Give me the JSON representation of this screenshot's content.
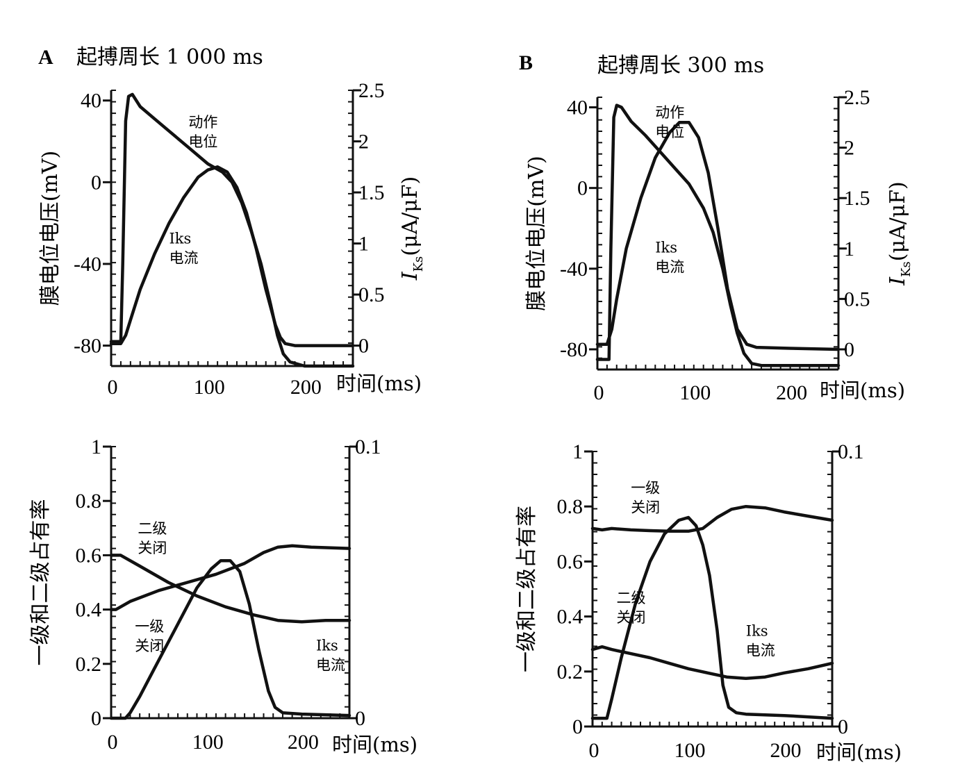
{
  "panels": [
    {
      "letter": "A",
      "title": "起搏周长 1 000 ms"
    },
    {
      "letter": "B",
      "title": "起搏周长 300 ms"
    }
  ],
  "chart_data": [
    {
      "panel": "A",
      "position": "top",
      "type": "line",
      "title": "起搏周长 1 000 ms",
      "xlabel": "时间(ms)",
      "ylabel": "膜电位电压(mV)",
      "y2label_main": "I",
      "y2label_sub": "Ks",
      "y2label_unit": "(μA/μF)",
      "xlim": [
        0,
        250
      ],
      "ylim": [
        -90,
        45
      ],
      "y2lim": [
        -0.2,
        2.5
      ],
      "xticks": [
        0,
        100,
        200
      ],
      "yticks": [
        40,
        0,
        -40,
        -80
      ],
      "y2ticks": [
        0,
        0.5,
        1,
        1.5,
        2,
        2.5
      ],
      "xtick_labels": [
        "0",
        "100",
        "200"
      ],
      "ytick_labels": [
        "40",
        "0",
        "-40",
        "-80"
      ],
      "y2tick_labels": [
        "0",
        "0.5",
        "1",
        "1.5",
        "2",
        "2.5"
      ],
      "series": [
        {
          "name": "动作电位",
          "axis": "left",
          "x": [
            0,
            10,
            12,
            15,
            18,
            22,
            30,
            45,
            60,
            80,
            100,
            115,
            125,
            135,
            145,
            155,
            165,
            172,
            178,
            185,
            200,
            250
          ],
          "y": [
            -78,
            -78,
            -40,
            30,
            42,
            43,
            37,
            31,
            25,
            17,
            9,
            5,
            0,
            -10,
            -24,
            -40,
            -60,
            -75,
            -84,
            -88,
            -90,
            -90
          ]
        },
        {
          "name": "Iks电流",
          "axis": "right",
          "x": [
            0,
            10,
            15,
            20,
            30,
            45,
            60,
            75,
            90,
            100,
            110,
            120,
            130,
            140,
            150,
            160,
            170,
            175,
            180,
            190,
            250
          ],
          "y": [
            0.02,
            0.02,
            0.1,
            0.25,
            0.55,
            0.9,
            1.2,
            1.45,
            1.65,
            1.72,
            1.75,
            1.7,
            1.55,
            1.3,
            0.95,
            0.55,
            0.2,
            0.08,
            0.02,
            0.0,
            0.0
          ]
        }
      ],
      "annotations": [
        {
          "lines": [
            "动作",
            "电位"
          ],
          "x": 80,
          "y": 27
        },
        {
          "lines": [
            "Iks",
            "电流"
          ],
          "x": 60,
          "y": -30
        }
      ]
    },
    {
      "panel": "A",
      "position": "bottom",
      "type": "line",
      "xlabel": "时间(ms)",
      "ylabel": "一级和二级占有率",
      "xlim": [
        0,
        250
      ],
      "ylim": [
        0,
        1
      ],
      "y2lim": [
        0,
        0.1
      ],
      "xticks": [
        0,
        100,
        200
      ],
      "yticks": [
        0,
        0.2,
        0.4,
        0.6,
        0.8,
        1
      ],
      "y2ticks": [
        0,
        0.1
      ],
      "xtick_labels": [
        "0",
        "100",
        "200"
      ],
      "ytick_labels": [
        "0",
        "0.2",
        "0.4",
        "0.6",
        "0.8",
        "1"
      ],
      "y2tick_labels": [
        "0",
        "0.1"
      ],
      "series": [
        {
          "name": "二级关闭",
          "axis": "left",
          "x": [
            0,
            10,
            30,
            60,
            90,
            120,
            150,
            175,
            200,
            225,
            250
          ],
          "y": [
            0.6,
            0.6,
            0.56,
            0.5,
            0.45,
            0.41,
            0.38,
            0.36,
            0.355,
            0.36,
            0.36
          ]
        },
        {
          "name": "一级关闭",
          "axis": "left",
          "x": [
            0,
            5,
            20,
            50,
            80,
            110,
            140,
            160,
            175,
            190,
            210,
            250
          ],
          "y": [
            0.4,
            0.4,
            0.43,
            0.47,
            0.5,
            0.53,
            0.57,
            0.61,
            0.63,
            0.635,
            0.63,
            0.625
          ]
        },
        {
          "name": "Iks电流",
          "axis": "right",
          "x": [
            0,
            15,
            20,
            30,
            45,
            60,
            75,
            90,
            105,
            115,
            125,
            135,
            145,
            155,
            165,
            172,
            180,
            200,
            250
          ],
          "y": [
            0,
            0,
            0.002,
            0.008,
            0.018,
            0.028,
            0.038,
            0.048,
            0.055,
            0.058,
            0.058,
            0.054,
            0.042,
            0.025,
            0.01,
            0.004,
            0.002,
            0.0015,
            0.001
          ]
        }
      ],
      "annotations": [
        {
          "lines": [
            "二级",
            "关闭"
          ],
          "x": 28,
          "y": 0.68
        },
        {
          "lines": [
            "一级",
            "关闭"
          ],
          "x": 25,
          "y": 0.32
        },
        {
          "lines": [
            "Iks",
            "电流"
          ],
          "x": 215,
          "y": 0.25
        }
      ]
    },
    {
      "panel": "B",
      "position": "top",
      "type": "line",
      "title": "起搏周长 300 ms",
      "xlabel": "时间(ms)",
      "ylabel": "膜电位电压(mV)",
      "y2label_main": "I",
      "y2label_sub": "Ks",
      "y2label_unit": "(μA/μF)",
      "xlim": [
        0,
        250
      ],
      "ylim": [
        -90,
        45
      ],
      "y2lim": [
        -0.2,
        2.5
      ],
      "xticks": [
        0,
        100,
        200
      ],
      "yticks": [
        40,
        0,
        -40,
        -80
      ],
      "y2ticks": [
        0,
        0.5,
        1,
        1.5,
        2,
        2.5
      ],
      "xtick_labels": [
        "0",
        "100",
        "200"
      ],
      "ytick_labels": [
        "40",
        "0",
        "-40",
        "-80"
      ],
      "y2tick_labels": [
        "0",
        "0.5",
        "1",
        "1.5",
        "2",
        "2.5"
      ],
      "series": [
        {
          "name": "动作电位",
          "axis": "left",
          "x": [
            0,
            12,
            14,
            17,
            20,
            25,
            35,
            50,
            65,
            80,
            95,
            110,
            120,
            130,
            138,
            145,
            152,
            160,
            170,
            200,
            250
          ],
          "y": [
            -85,
            -85,
            -30,
            35,
            41,
            40,
            33,
            26,
            18,
            10,
            2,
            -10,
            -22,
            -40,
            -58,
            -72,
            -82,
            -87,
            -88,
            -88,
            -88
          ]
        },
        {
          "name": "Iks电流",
          "axis": "right",
          "x": [
            0,
            10,
            15,
            20,
            30,
            45,
            60,
            75,
            85,
            95,
            105,
            115,
            125,
            135,
            145,
            155,
            165,
            200,
            250
          ],
          "y": [
            0.05,
            0.05,
            0.2,
            0.5,
            1.0,
            1.5,
            1.9,
            2.15,
            2.25,
            2.25,
            2.1,
            1.75,
            1.2,
            0.6,
            0.2,
            0.05,
            0.02,
            0.01,
            0.0
          ]
        }
      ],
      "annotations": [
        {
          "lines": [
            "动作",
            "电位"
          ],
          "x": 60,
          "y": 35
        },
        {
          "lines": [
            "Iks",
            "电流"
          ],
          "x": 60,
          "y": -32
        }
      ]
    },
    {
      "panel": "B",
      "position": "bottom",
      "type": "line",
      "xlabel": "时间(ms)",
      "ylabel": "一级和二级占有率",
      "xlim": [
        0,
        250
      ],
      "ylim": [
        0,
        1
      ],
      "y2lim": [
        0,
        0.1
      ],
      "xticks": [
        0,
        100,
        200
      ],
      "yticks": [
        0,
        0.2,
        0.4,
        0.6,
        0.8,
        1
      ],
      "y2ticks": [
        0,
        0.1
      ],
      "xtick_labels": [
        "0",
        "100",
        "200"
      ],
      "ytick_labels": [
        "0",
        "0.2",
        "0.4",
        "0.6",
        "0.8",
        "1"
      ],
      "y2tick_labels": [
        "0",
        "0.1"
      ],
      "series": [
        {
          "name": "一级关闭",
          "axis": "left",
          "x": [
            0,
            10,
            20,
            40,
            60,
            80,
            100,
            115,
            130,
            145,
            160,
            180,
            200,
            225,
            250
          ],
          "y": [
            0.72,
            0.715,
            0.72,
            0.715,
            0.712,
            0.71,
            0.71,
            0.72,
            0.76,
            0.79,
            0.8,
            0.795,
            0.78,
            0.765,
            0.75
          ]
        },
        {
          "name": "二级关闭",
          "axis": "left",
          "x": [
            0,
            10,
            20,
            40,
            60,
            80,
            100,
            120,
            140,
            160,
            180,
            200,
            225,
            250
          ],
          "y": [
            0.28,
            0.29,
            0.28,
            0.265,
            0.25,
            0.23,
            0.21,
            0.195,
            0.18,
            0.175,
            0.18,
            0.195,
            0.21,
            0.23
          ]
        },
        {
          "name": "Iks电流",
          "axis": "right",
          "x": [
            0,
            15,
            20,
            30,
            45,
            60,
            75,
            90,
            100,
            108,
            115,
            122,
            130,
            136,
            142,
            150,
            160,
            200,
            250
          ],
          "y": [
            0.003,
            0.003,
            0.01,
            0.025,
            0.045,
            0.06,
            0.07,
            0.075,
            0.076,
            0.073,
            0.066,
            0.055,
            0.035,
            0.015,
            0.007,
            0.005,
            0.0045,
            0.004,
            0.003
          ]
        }
      ],
      "annotations": [
        {
          "lines": [
            "一级",
            "关闭"
          ],
          "x": 40,
          "y": 0.85
        },
        {
          "lines": [
            "二级",
            "关闭"
          ],
          "x": 25,
          "y": 0.45
        },
        {
          "lines": [
            "Iks",
            "电流"
          ],
          "x": 160,
          "y": 0.33
        }
      ]
    }
  ]
}
